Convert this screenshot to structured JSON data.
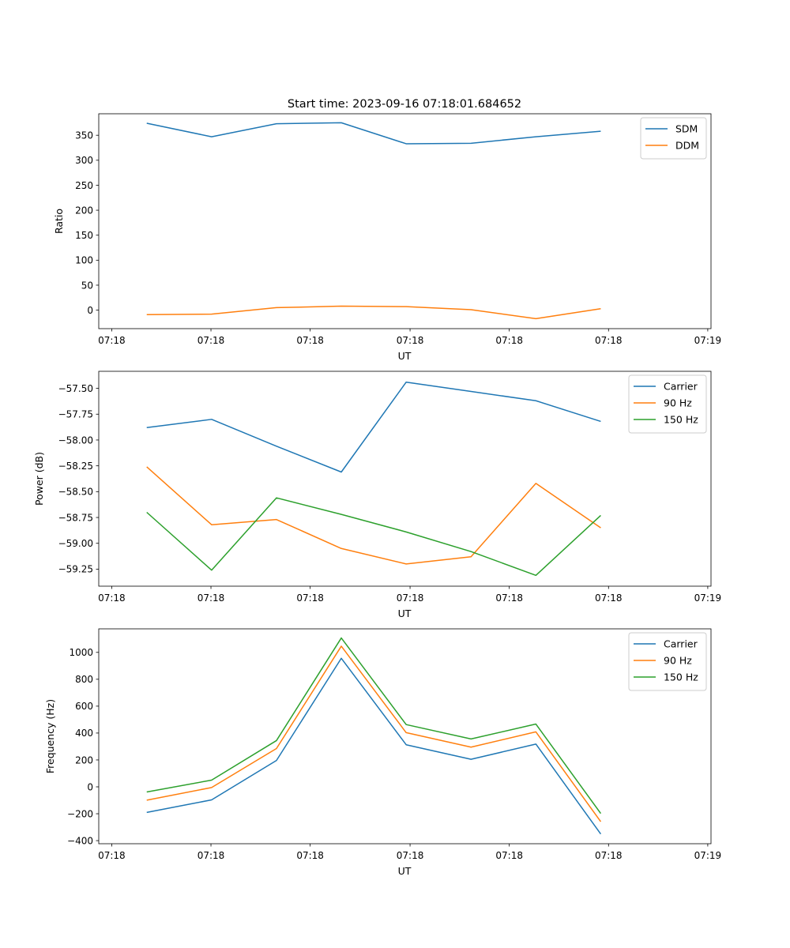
{
  "figure": {
    "title": "Start time: 2023-09-16 07:18:01.684652"
  },
  "chart_data": [
    {
      "type": "line",
      "title": "Start time: 2023-09-16 07:18:01.684652",
      "xlabel": "UT",
      "ylabel": "Ratio",
      "x_tick_labels": [
        "07:18",
        "07:18",
        "07:18",
        "07:18",
        "07:18",
        "07:18",
        "07:19"
      ],
      "x_index": [
        0,
        1,
        2,
        3,
        4,
        5,
        6,
        7
      ],
      "xlim": [
        -0.74,
        8.7
      ],
      "ylim": [
        -37,
        393
      ],
      "yticks": [
        0,
        50,
        100,
        150,
        200,
        250,
        300,
        350
      ],
      "legend": "top-right",
      "series": [
        {
          "name": "SDM",
          "color": "#1f77b4",
          "values": [
            374,
            347,
            373,
            375,
            333,
            334,
            347,
            358
          ]
        },
        {
          "name": "DDM",
          "color": "#ff7f0e",
          "values": [
            -9,
            -8,
            5,
            8,
            7,
            1,
            -17,
            3
          ]
        }
      ]
    },
    {
      "type": "line",
      "title": "",
      "xlabel": "UT",
      "ylabel": "Power (dB)",
      "x_tick_labels": [
        "07:18",
        "07:18",
        "07:18",
        "07:18",
        "07:18",
        "07:18",
        "07:19"
      ],
      "x_index": [
        0,
        1,
        2,
        3,
        4,
        5,
        6,
        7
      ],
      "xlim": [
        -0.74,
        8.7
      ],
      "ylim": [
        -59.415,
        -57.335
      ],
      "yticks": [
        -57.5,
        -57.75,
        -58.0,
        -58.25,
        -58.5,
        -58.75,
        -59.0,
        -59.25
      ],
      "ytick_labels": [
        "−57.50",
        "−57.75",
        "−58.00",
        "−58.25",
        "−58.50",
        "−58.75",
        "−59.00",
        "−59.25"
      ],
      "legend": "top-right",
      "series": [
        {
          "name": "Carrier",
          "color": "#1f77b4",
          "values": [
            -57.88,
            -57.8,
            -58.06,
            -58.31,
            -57.44,
            -57.53,
            -57.62,
            -57.82
          ]
        },
        {
          "name": "90 Hz",
          "color": "#ff7f0e",
          "values": [
            -58.26,
            -58.82,
            -58.77,
            -59.05,
            -59.2,
            -59.13,
            -58.42,
            -58.85
          ]
        },
        {
          "name": "150 Hz",
          "color": "#2ca02c",
          "values": [
            -58.7,
            -59.26,
            -58.56,
            -58.72,
            -58.89,
            -59.08,
            -59.31,
            -58.73
          ]
        }
      ]
    },
    {
      "type": "line",
      "title": "",
      "xlabel": "UT",
      "ylabel": "Frequency (Hz)",
      "x_tick_labels": [
        "07:18",
        "07:18",
        "07:18",
        "07:18",
        "07:18",
        "07:18",
        "07:19"
      ],
      "x_index": [
        0,
        1,
        2,
        3,
        4,
        5,
        6,
        7
      ],
      "xlim": [
        -0.74,
        8.7
      ],
      "ylim": [
        -423,
        1175
      ],
      "yticks": [
        -400,
        -200,
        0,
        200,
        400,
        600,
        800,
        1000
      ],
      "ytick_labels": [
        "−400",
        "−200",
        "0",
        "200",
        "400",
        "600",
        "800",
        "1000"
      ],
      "legend": "top-right",
      "series": [
        {
          "name": "Carrier",
          "color": "#1f77b4",
          "values": [
            -190,
            -97,
            196,
            956,
            313,
            205,
            318,
            -351
          ]
        },
        {
          "name": "90 Hz",
          "color": "#ff7f0e",
          "values": [
            -99,
            -5,
            285,
            1046,
            403,
            295,
            409,
            -259
          ]
        },
        {
          "name": "150 Hz",
          "color": "#2ca02c",
          "values": [
            -38,
            50,
            344,
            1107,
            463,
            356,
            467,
            -198
          ]
        }
      ]
    }
  ]
}
